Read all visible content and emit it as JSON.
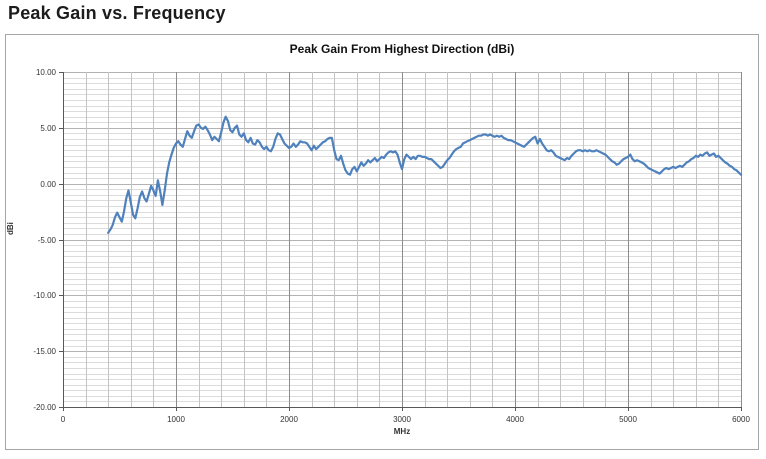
{
  "heading": "Peak Gain vs. Frequency",
  "colors": {
    "line": "#4f81bd",
    "minor_grid_h": "#dcdcdc",
    "minor_grid_v": "#c4c4c4",
    "major_grid_h": "#b3b3b3",
    "major_grid_v": "#8c8c8c",
    "axis": "#595959",
    "chart_border": "#a6a6a6",
    "text": "#333333"
  },
  "chart_data": {
    "type": "line",
    "title": "Peak Gain From Highest Direction (dBi)",
    "xlabel": "MHz",
    "ylabel": "dBi",
    "xlim": [
      0,
      6000
    ],
    "ylim": [
      -20,
      10
    ],
    "x_major_step": 1000,
    "x_minor_step": 200,
    "y_major_step": 5,
    "y_minor_step": 0.5,
    "grid": true,
    "legend_position": "none",
    "x_ticks": [
      {
        "value": 0,
        "label": "0"
      },
      {
        "value": 1000,
        "label": "1000"
      },
      {
        "value": 2000,
        "label": "2000"
      },
      {
        "value": 3000,
        "label": "3000"
      },
      {
        "value": 4000,
        "label": "4000"
      },
      {
        "value": 5000,
        "label": "5000"
      },
      {
        "value": 6000,
        "label": "6000"
      }
    ],
    "y_ticks": [
      {
        "value": 10,
        "label": "10.00"
      },
      {
        "value": 5,
        "label": "5.00"
      },
      {
        "value": 0,
        "label": "0.00"
      },
      {
        "value": -5,
        "label": "-5.00"
      },
      {
        "value": -10,
        "label": "-10.00"
      },
      {
        "value": -15,
        "label": "-15.00"
      },
      {
        "value": -20,
        "label": "-20.00"
      }
    ],
    "series": [
      {
        "name": "Peak Gain",
        "color": "#4f81bd",
        "points": [
          [
            400,
            -4.4
          ],
          [
            420,
            -4.1
          ],
          [
            440,
            -3.7
          ],
          [
            460,
            -3.0
          ],
          [
            480,
            -2.6
          ],
          [
            500,
            -3.0
          ],
          [
            520,
            -3.4
          ],
          [
            540,
            -2.5
          ],
          [
            560,
            -1.3
          ],
          [
            580,
            -0.6
          ],
          [
            600,
            -1.7
          ],
          [
            620,
            -2.8
          ],
          [
            640,
            -3.1
          ],
          [
            660,
            -2.2
          ],
          [
            680,
            -1.2
          ],
          [
            700,
            -0.7
          ],
          [
            720,
            -1.3
          ],
          [
            740,
            -1.6
          ],
          [
            760,
            -0.9
          ],
          [
            780,
            -0.2
          ],
          [
            800,
            -0.6
          ],
          [
            820,
            -1.1
          ],
          [
            840,
            0.3
          ],
          [
            860,
            -0.7
          ],
          [
            880,
            -1.9
          ],
          [
            900,
            -0.6
          ],
          [
            920,
            0.9
          ],
          [
            940,
            1.9
          ],
          [
            960,
            2.6
          ],
          [
            980,
            3.2
          ],
          [
            1000,
            3.6
          ],
          [
            1020,
            3.8
          ],
          [
            1040,
            3.5
          ],
          [
            1060,
            3.3
          ],
          [
            1080,
            4.0
          ],
          [
            1100,
            4.7
          ],
          [
            1120,
            4.3
          ],
          [
            1140,
            4.1
          ],
          [
            1160,
            4.7
          ],
          [
            1180,
            5.2
          ],
          [
            1200,
            5.3
          ],
          [
            1220,
            5.0
          ],
          [
            1240,
            4.9
          ],
          [
            1260,
            5.1
          ],
          [
            1280,
            4.8
          ],
          [
            1300,
            4.4
          ],
          [
            1320,
            3.9
          ],
          [
            1340,
            4.2
          ],
          [
            1360,
            4.0
          ],
          [
            1380,
            3.8
          ],
          [
            1400,
            4.6
          ],
          [
            1420,
            5.5
          ],
          [
            1440,
            6.0
          ],
          [
            1460,
            5.6
          ],
          [
            1480,
            4.8
          ],
          [
            1500,
            4.6
          ],
          [
            1520,
            5.0
          ],
          [
            1540,
            5.2
          ],
          [
            1560,
            4.4
          ],
          [
            1580,
            4.2
          ],
          [
            1600,
            4.5
          ],
          [
            1620,
            3.9
          ],
          [
            1640,
            3.7
          ],
          [
            1660,
            4.1
          ],
          [
            1680,
            3.6
          ],
          [
            1700,
            3.5
          ],
          [
            1720,
            3.9
          ],
          [
            1740,
            3.7
          ],
          [
            1760,
            3.3
          ],
          [
            1780,
            3.1
          ],
          [
            1800,
            3.3
          ],
          [
            1820,
            3.0
          ],
          [
            1840,
            2.9
          ],
          [
            1860,
            3.3
          ],
          [
            1880,
            4.0
          ],
          [
            1900,
            4.5
          ],
          [
            1920,
            4.4
          ],
          [
            1940,
            4.0
          ],
          [
            1960,
            3.6
          ],
          [
            1980,
            3.4
          ],
          [
            2000,
            3.2
          ],
          [
            2020,
            3.3
          ],
          [
            2040,
            3.6
          ],
          [
            2060,
            3.3
          ],
          [
            2080,
            3.5
          ],
          [
            2100,
            3.8
          ],
          [
            2120,
            3.7
          ],
          [
            2140,
            3.7
          ],
          [
            2160,
            3.6
          ],
          [
            2180,
            3.3
          ],
          [
            2200,
            3.0
          ],
          [
            2220,
            3.4
          ],
          [
            2240,
            3.1
          ],
          [
            2260,
            3.3
          ],
          [
            2280,
            3.5
          ],
          [
            2300,
            3.7
          ],
          [
            2320,
            3.8
          ],
          [
            2340,
            4.0
          ],
          [
            2360,
            4.1
          ],
          [
            2380,
            4.1
          ],
          [
            2400,
            3.0
          ],
          [
            2420,
            2.2
          ],
          [
            2440,
            2.1
          ],
          [
            2460,
            2.5
          ],
          [
            2480,
            1.8
          ],
          [
            2500,
            1.2
          ],
          [
            2520,
            0.9
          ],
          [
            2540,
            0.8
          ],
          [
            2560,
            1.3
          ],
          [
            2580,
            1.5
          ],
          [
            2600,
            1.1
          ],
          [
            2620,
            1.5
          ],
          [
            2640,
            1.9
          ],
          [
            2660,
            1.6
          ],
          [
            2680,
            1.8
          ],
          [
            2700,
            2.1
          ],
          [
            2720,
            1.9
          ],
          [
            2740,
            2.1
          ],
          [
            2760,
            2.3
          ],
          [
            2780,
            2.0
          ],
          [
            2800,
            2.2
          ],
          [
            2820,
            2.4
          ],
          [
            2840,
            2.3
          ],
          [
            2860,
            2.6
          ],
          [
            2880,
            2.8
          ],
          [
            2900,
            2.9
          ],
          [
            2920,
            2.8
          ],
          [
            2940,
            2.9
          ],
          [
            2960,
            2.6
          ],
          [
            2980,
            1.9
          ],
          [
            3000,
            1.3
          ],
          [
            3020,
            2.2
          ],
          [
            3040,
            2.6
          ],
          [
            3060,
            2.4
          ],
          [
            3080,
            2.2
          ],
          [
            3100,
            2.4
          ],
          [
            3120,
            2.2
          ],
          [
            3140,
            2.5
          ],
          [
            3160,
            2.5
          ],
          [
            3180,
            2.4
          ],
          [
            3200,
            2.4
          ],
          [
            3220,
            2.3
          ],
          [
            3240,
            2.2
          ],
          [
            3260,
            2.2
          ],
          [
            3280,
            2.0
          ],
          [
            3300,
            1.8
          ],
          [
            3320,
            1.6
          ],
          [
            3340,
            1.4
          ],
          [
            3360,
            1.5
          ],
          [
            3380,
            1.8
          ],
          [
            3400,
            2.1
          ],
          [
            3420,
            2.3
          ],
          [
            3440,
            2.6
          ],
          [
            3460,
            2.9
          ],
          [
            3480,
            3.1
          ],
          [
            3500,
            3.2
          ],
          [
            3520,
            3.3
          ],
          [
            3540,
            3.6
          ],
          [
            3560,
            3.7
          ],
          [
            3580,
            3.8
          ],
          [
            3600,
            3.9
          ],
          [
            3620,
            4.0
          ],
          [
            3640,
            4.1
          ],
          [
            3660,
            4.2
          ],
          [
            3680,
            4.3
          ],
          [
            3700,
            4.3
          ],
          [
            3720,
            4.4
          ],
          [
            3740,
            4.4
          ],
          [
            3760,
            4.3
          ],
          [
            3780,
            4.4
          ],
          [
            3800,
            4.3
          ],
          [
            3820,
            4.2
          ],
          [
            3840,
            4.3
          ],
          [
            3860,
            4.2
          ],
          [
            3880,
            4.3
          ],
          [
            3900,
            4.1
          ],
          [
            3920,
            4.0
          ],
          [
            3940,
            3.9
          ],
          [
            3960,
            3.9
          ],
          [
            3980,
            3.8
          ],
          [
            4000,
            3.7
          ],
          [
            4020,
            3.6
          ],
          [
            4040,
            3.5
          ],
          [
            4060,
            3.4
          ],
          [
            4080,
            3.3
          ],
          [
            4100,
            3.5
          ],
          [
            4120,
            3.7
          ],
          [
            4140,
            3.9
          ],
          [
            4160,
            4.1
          ],
          [
            4180,
            4.2
          ],
          [
            4200,
            3.6
          ],
          [
            4220,
            4.0
          ],
          [
            4240,
            3.6
          ],
          [
            4260,
            3.3
          ],
          [
            4280,
            3.0
          ],
          [
            4300,
            2.9
          ],
          [
            4320,
            3.0
          ],
          [
            4340,
            2.8
          ],
          [
            4360,
            2.5
          ],
          [
            4380,
            2.4
          ],
          [
            4400,
            2.3
          ],
          [
            4420,
            2.2
          ],
          [
            4440,
            2.1
          ],
          [
            4460,
            2.3
          ],
          [
            4480,
            2.2
          ],
          [
            4500,
            2.5
          ],
          [
            4520,
            2.7
          ],
          [
            4540,
            2.9
          ],
          [
            4560,
            3.0
          ],
          [
            4580,
            3.0
          ],
          [
            4600,
            2.9
          ],
          [
            4620,
            3.0
          ],
          [
            4640,
            2.9
          ],
          [
            4660,
            3.0
          ],
          [
            4680,
            2.9
          ],
          [
            4700,
            2.9
          ],
          [
            4720,
            3.0
          ],
          [
            4740,
            2.9
          ],
          [
            4760,
            2.8
          ],
          [
            4780,
            2.7
          ],
          [
            4800,
            2.6
          ],
          [
            4820,
            2.4
          ],
          [
            4840,
            2.2
          ],
          [
            4860,
            2.0
          ],
          [
            4880,
            1.9
          ],
          [
            4900,
            1.7
          ],
          [
            4920,
            1.8
          ],
          [
            4940,
            2.0
          ],
          [
            4960,
            2.2
          ],
          [
            4980,
            2.3
          ],
          [
            5000,
            2.4
          ],
          [
            5020,
            2.6
          ],
          [
            5040,
            2.2
          ],
          [
            5060,
            2.0
          ],
          [
            5080,
            2.1
          ],
          [
            5100,
            2.0
          ],
          [
            5120,
            1.9
          ],
          [
            5140,
            1.8
          ],
          [
            5160,
            1.6
          ],
          [
            5180,
            1.4
          ],
          [
            5200,
            1.3
          ],
          [
            5220,
            1.2
          ],
          [
            5240,
            1.1
          ],
          [
            5260,
            1.0
          ],
          [
            5280,
            0.9
          ],
          [
            5300,
            1.1
          ],
          [
            5320,
            1.3
          ],
          [
            5340,
            1.4
          ],
          [
            5360,
            1.3
          ],
          [
            5380,
            1.4
          ],
          [
            5400,
            1.5
          ],
          [
            5420,
            1.4
          ],
          [
            5440,
            1.5
          ],
          [
            5460,
            1.6
          ],
          [
            5480,
            1.5
          ],
          [
            5500,
            1.7
          ],
          [
            5520,
            1.9
          ],
          [
            5540,
            2.0
          ],
          [
            5560,
            2.2
          ],
          [
            5580,
            2.3
          ],
          [
            5600,
            2.5
          ],
          [
            5620,
            2.4
          ],
          [
            5640,
            2.6
          ],
          [
            5660,
            2.5
          ],
          [
            5680,
            2.7
          ],
          [
            5700,
            2.8
          ],
          [
            5720,
            2.5
          ],
          [
            5740,
            2.6
          ],
          [
            5760,
            2.7
          ],
          [
            5780,
            2.4
          ],
          [
            5800,
            2.5
          ],
          [
            5820,
            2.3
          ],
          [
            5840,
            2.1
          ],
          [
            5860,
            1.9
          ],
          [
            5880,
            1.8
          ],
          [
            5900,
            1.6
          ],
          [
            5920,
            1.5
          ],
          [
            5940,
            1.3
          ],
          [
            5960,
            1.2
          ],
          [
            5980,
            1.0
          ],
          [
            6000,
            0.8
          ]
        ]
      }
    ]
  }
}
